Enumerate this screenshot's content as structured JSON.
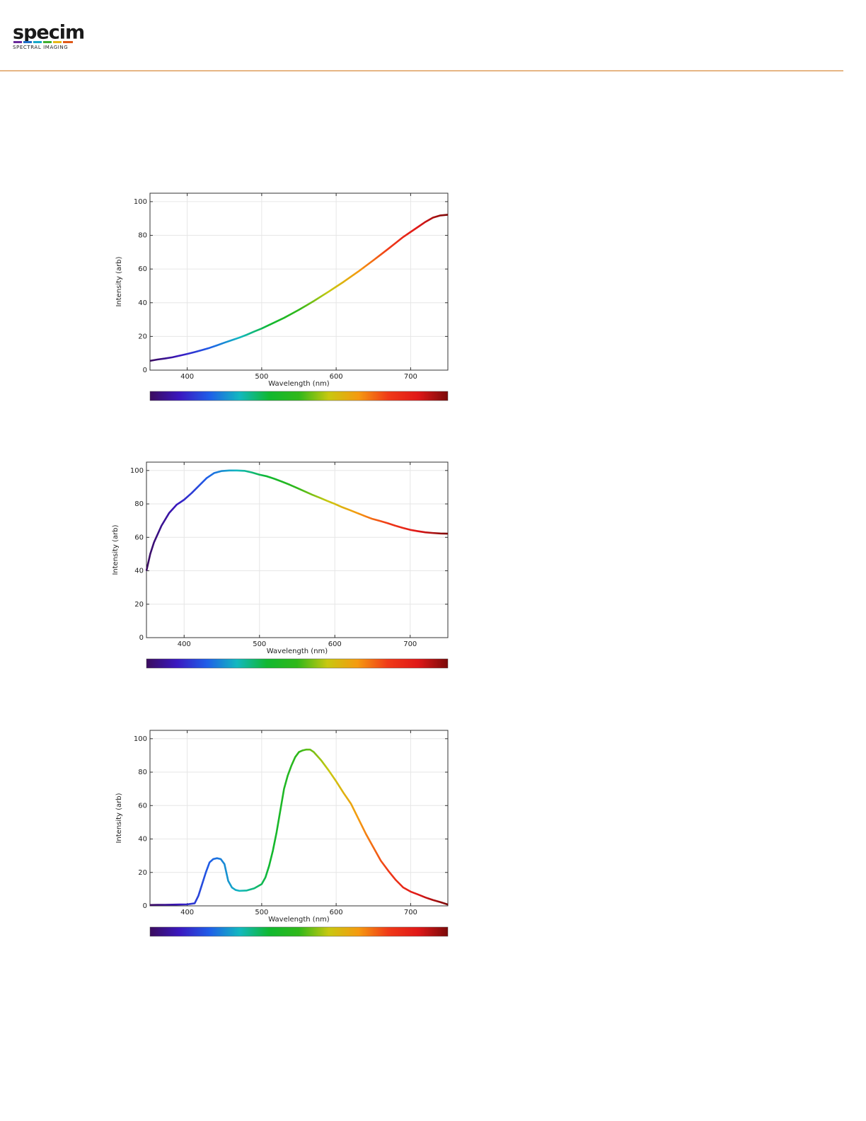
{
  "header": {
    "logo": "specim",
    "tagline": "SPECTRAL IMAGING"
  },
  "chart_data": [
    {
      "type": "line",
      "x_label": "Wavelength (nm)",
      "y_label": "Intensity (arb)",
      "xlim": [
        350,
        750
      ],
      "xticks": [
        400,
        500,
        600,
        700
      ],
      "ylim": [
        0,
        105
      ],
      "yticks": [
        0,
        20,
        40,
        60,
        80,
        100
      ],
      "grid": true,
      "colormap": [
        "#3b0c5e",
        "#3a18c0",
        "#1f5ee8",
        "#12b8c0",
        "#10b830",
        "#30b81a",
        "#c8c810",
        "#f59a10",
        "#f03a18",
        "#e01818",
        "#7a0a0a"
      ],
      "x": [
        350,
        360,
        370,
        380,
        390,
        400,
        410,
        420,
        430,
        440,
        450,
        460,
        470,
        480,
        490,
        500,
        510,
        520,
        530,
        540,
        550,
        560,
        570,
        580,
        590,
        600,
        610,
        620,
        630,
        640,
        650,
        660,
        670,
        680,
        690,
        700,
        710,
        720,
        730,
        740,
        750
      ],
      "values": [
        5.5,
        6.3,
        6.9,
        7.6,
        8.6,
        9.6,
        10.7,
        11.9,
        13.2,
        14.7,
        16.3,
        17.8,
        19.3,
        21,
        22.9,
        24.7,
        26.8,
        28.9,
        31,
        33.4,
        35.8,
        38.4,
        41,
        43.8,
        46.6,
        49.5,
        52.4,
        55.5,
        58.6,
        61.9,
        65.2,
        68.6,
        72,
        75.5,
        79,
        82,
        85,
        88,
        90.5,
        91.8,
        92.2
      ]
    },
    {
      "type": "line",
      "x_label": "Wavelength (nm)",
      "y_label": "Intensity (arb)",
      "xlim": [
        350,
        750
      ],
      "xticks": [
        400,
        500,
        600,
        700
      ],
      "ylim": [
        0,
        105
      ],
      "yticks": [
        0,
        20,
        40,
        60,
        80,
        100
      ],
      "grid": true,
      "colormap": [
        "#3b0c5e",
        "#3a18c0",
        "#1f5ee8",
        "#12b8c0",
        "#10b830",
        "#30b81a",
        "#c8c810",
        "#f59a10",
        "#f03a18",
        "#e01818",
        "#7a0a0a"
      ],
      "x": [
        350,
        355,
        360,
        370,
        380,
        390,
        400,
        410,
        420,
        430,
        440,
        450,
        460,
        470,
        480,
        490,
        500,
        510,
        520,
        530,
        540,
        550,
        560,
        570,
        580,
        590,
        600,
        610,
        620,
        630,
        640,
        650,
        660,
        670,
        680,
        690,
        700,
        710,
        720,
        730,
        740,
        750
      ],
      "values": [
        40,
        50,
        57,
        67,
        74.5,
        79.5,
        82.5,
        86.5,
        91,
        95.5,
        98.5,
        99.7,
        100,
        100,
        99.8,
        98.8,
        97.5,
        96.5,
        95,
        93.3,
        91.5,
        89.5,
        87.5,
        85.5,
        83.7,
        81.8,
        80,
        78,
        76.3,
        74.5,
        72.7,
        71,
        69.8,
        68.5,
        67,
        65.7,
        64.5,
        63.7,
        63,
        62.6,
        62.3,
        62.2
      ]
    },
    {
      "type": "line",
      "x_label": "Wavelength (nm)",
      "y_label": "Intensity (arb)",
      "xlim": [
        350,
        750
      ],
      "xticks": [
        400,
        500,
        600,
        700
      ],
      "ylim": [
        0,
        105
      ],
      "yticks": [
        0,
        20,
        40,
        60,
        80,
        100
      ],
      "grid": true,
      "colormap": [
        "#3b0c5e",
        "#3a18c0",
        "#1f5ee8",
        "#12b8c0",
        "#10b830",
        "#30b81a",
        "#c8c810",
        "#f59a10",
        "#f03a18",
        "#e01818",
        "#7a0a0a"
      ],
      "x": [
        350,
        360,
        370,
        380,
        390,
        400,
        410,
        415,
        420,
        425,
        430,
        435,
        440,
        445,
        450,
        455,
        460,
        465,
        470,
        480,
        490,
        500,
        505,
        510,
        515,
        520,
        525,
        530,
        535,
        540,
        545,
        550,
        555,
        560,
        565,
        570,
        580,
        590,
        600,
        610,
        620,
        630,
        640,
        650,
        660,
        670,
        680,
        690,
        700,
        710,
        720,
        730,
        740,
        750
      ],
      "values": [
        0.5,
        0.6,
        0.6,
        0.7,
        0.8,
        0.9,
        1.5,
        6,
        13,
        20,
        26,
        28,
        28.5,
        28,
        25,
        15,
        11,
        9.5,
        9,
        9.2,
        10.5,
        13,
        17,
        24,
        33,
        44,
        57,
        70,
        78,
        84,
        89,
        92,
        93,
        93.5,
        93.5,
        92,
        87,
        81,
        74.5,
        67.5,
        61,
        52,
        43,
        35,
        27,
        21,
        15.5,
        11,
        8.5,
        6.8,
        5,
        3.5,
        2.2,
        0.8
      ]
    }
  ]
}
